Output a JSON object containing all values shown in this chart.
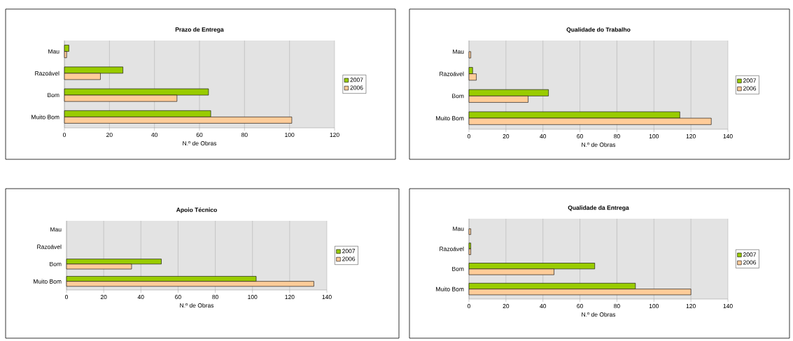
{
  "chart_data": [
    {
      "type": "bar",
      "orientation": "horizontal",
      "title": "Prazo de Entrega",
      "xlabel": "N.º de Obras",
      "categories": [
        "Mau",
        "Razoável",
        "Bom",
        "Muito Bom"
      ],
      "xlim": [
        0,
        120
      ],
      "xticks": [
        0,
        20,
        40,
        60,
        80,
        100,
        120
      ],
      "grid": "x",
      "legend": "right",
      "series": [
        {
          "name": "2007",
          "color": "#99cc00",
          "values": [
            2,
            26,
            64,
            65
          ]
        },
        {
          "name": "2006",
          "color": "#ffcc99",
          "values": [
            1,
            16,
            50,
            101
          ]
        }
      ]
    },
    {
      "type": "bar",
      "orientation": "horizontal",
      "title": "Qualidade do Trabalho",
      "xlabel": "N.º de Obras",
      "categories": [
        "Mau",
        "Razoável",
        "Bom",
        "Muito Bom"
      ],
      "xlim": [
        0,
        140
      ],
      "xticks": [
        0,
        20,
        40,
        60,
        80,
        100,
        120,
        140
      ],
      "grid": "x",
      "legend": "right",
      "series": [
        {
          "name": "2007",
          "color": "#99cc00",
          "values": [
            0,
            2,
            43,
            114
          ]
        },
        {
          "name": "2006",
          "color": "#ffcc99",
          "values": [
            1,
            4,
            32,
            131
          ]
        }
      ]
    },
    {
      "type": "bar",
      "orientation": "horizontal",
      "title": "Apoio Técnico",
      "xlabel": "N.º de Obras",
      "categories": [
        "Mau",
        "Razoável",
        "Bom",
        "Muito Bom"
      ],
      "xlim": [
        0,
        140
      ],
      "xticks": [
        0,
        20,
        40,
        60,
        80,
        100,
        120,
        140
      ],
      "grid": "x",
      "legend": "right",
      "series": [
        {
          "name": "2007",
          "color": "#99cc00",
          "values": [
            0,
            0,
            51,
            102
          ]
        },
        {
          "name": "2006",
          "color": "#ffcc99",
          "values": [
            0,
            0,
            35,
            133
          ]
        }
      ]
    },
    {
      "type": "bar",
      "orientation": "horizontal",
      "title": "Qualidade da Entrega",
      "xlabel": "N.º de Obras",
      "categories": [
        "Mau",
        "Razoável",
        "Bom",
        "Muito Bom"
      ],
      "xlim": [
        0,
        140
      ],
      "xticks": [
        0,
        20,
        40,
        60,
        80,
        100,
        120,
        140
      ],
      "grid": "x",
      "legend": "right",
      "series": [
        {
          "name": "2007",
          "color": "#99cc00",
          "values": [
            0,
            1,
            68,
            90
          ]
        },
        {
          "name": "2006",
          "color": "#ffcc99",
          "values": [
            1,
            1,
            46,
            120
          ]
        }
      ]
    }
  ]
}
